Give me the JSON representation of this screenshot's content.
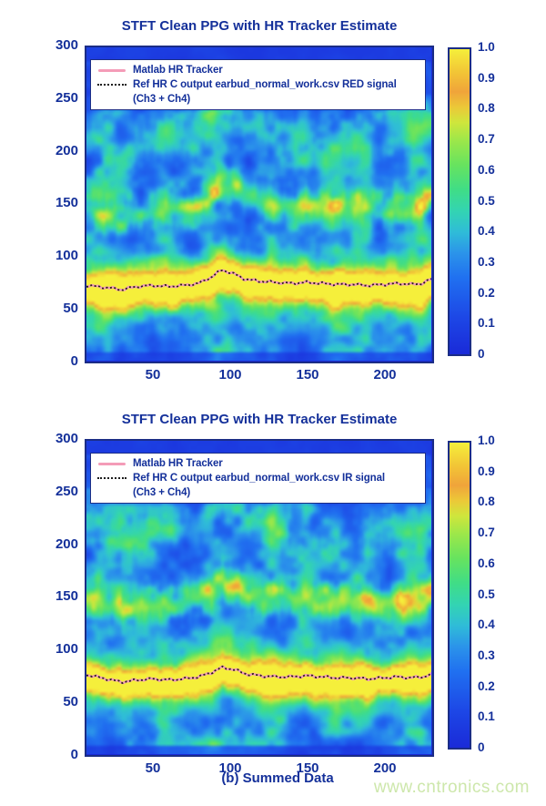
{
  "figure": {
    "caption": "(b) Summed Data",
    "watermark": "www.cntronics.com"
  },
  "colors": {
    "text_navy": "#14309a",
    "axis_border": "#1b2d86",
    "matlab_tracker_pink": "#f49cb8",
    "ref_tracker_dark": "#2b2014",
    "watermark_green": "#cde7ab",
    "background": "#ffffff"
  },
  "colormap_stops": [
    [
      0.0,
      "#1a2ad8"
    ],
    [
      0.12,
      "#1d47e6"
    ],
    [
      0.25,
      "#2070f0"
    ],
    [
      0.33,
      "#2b93ea"
    ],
    [
      0.4,
      "#2fbcd8"
    ],
    [
      0.47,
      "#33d4b2"
    ],
    [
      0.54,
      "#40dd86"
    ],
    [
      0.62,
      "#67e35f"
    ],
    [
      0.7,
      "#9ce74a"
    ],
    [
      0.76,
      "#cfe63c"
    ],
    [
      0.81,
      "#ecc838"
    ],
    [
      0.86,
      "#f0a43a"
    ],
    [
      0.92,
      "#f2c336"
    ],
    [
      1.0,
      "#f5ef3b"
    ]
  ],
  "chart_data": [
    {
      "type": "heatmap",
      "title": "STFT Clean PPG with HR Tracker Estimate",
      "xlabel": "",
      "ylabel": "",
      "xticks": [
        "50",
        "100",
        "150",
        "200"
      ],
      "yticks": [
        "300",
        "250",
        "200",
        "150",
        "100",
        "50",
        "0"
      ],
      "x_range": [
        7,
        231
      ],
      "y_range": [
        0,
        300
      ],
      "grid": false,
      "colorbar": {
        "position": "right",
        "range": [
          0,
          1
        ],
        "ticks": [
          "1.0",
          "0.9",
          "0.8",
          "0.7",
          "0.6",
          "0.5",
          "0.4",
          "0.3",
          "0.2",
          "0.1",
          "0"
        ]
      },
      "legend": {
        "position": "top-left",
        "items": [
          {
            "marker": "pink-solid-line",
            "label": "Matlab HR Tracker"
          },
          {
            "marker": "black-dotted-line",
            "label": "Ref HR C output earbud_normal_work.csv RED signal",
            "label_line2": "(Ch3 + Ch4)"
          }
        ]
      },
      "hr_track": {
        "t": [
          7,
          20,
          30,
          40,
          50,
          60,
          70,
          80,
          88,
          95,
          103,
          110,
          120,
          130,
          140,
          150,
          160,
          170,
          180,
          190,
          200,
          210,
          218,
          225,
          231
        ],
        "bpm": [
          72,
          70,
          68,
          71,
          72,
          71,
          72,
          74,
          80,
          87,
          83,
          78,
          76,
          75,
          74,
          75,
          74,
          73,
          73,
          72,
          73,
          74,
          73,
          74,
          78
        ]
      },
      "spectrogram": {
        "seed": 20231,
        "main_band_strength": 0.82,
        "main_band_width": 11,
        "harmonic_strength": 0.3,
        "third_band_strength": 0.15,
        "streaks": {
          "t": [
            13,
            20,
            33,
            57,
            88,
            96,
            128,
            150,
            170,
            186,
            207,
            222,
            229
          ],
          "s": [
            0.3,
            0.45,
            0.22,
            0.26,
            0.5,
            0.34,
            0.42,
            0.26,
            0.5,
            0.26,
            0.3,
            0.45,
            0.35
          ]
        }
      }
    },
    {
      "type": "heatmap",
      "title": "STFT Clean PPG with HR Tracker Estimate",
      "xlabel": "",
      "ylabel": "",
      "xticks": [
        "50",
        "100",
        "150",
        "200"
      ],
      "yticks": [
        "300",
        "250",
        "200",
        "150",
        "100",
        "50",
        "0"
      ],
      "x_range": [
        7,
        231
      ],
      "y_range": [
        0,
        300
      ],
      "grid": false,
      "colorbar": {
        "position": "right",
        "range": [
          0,
          1
        ],
        "ticks": [
          "1.0",
          "0.9",
          "0.8",
          "0.7",
          "0.6",
          "0.5",
          "0.4",
          "0.3",
          "0.2",
          "0.1",
          "0"
        ]
      },
      "legend": {
        "position": "top-left",
        "items": [
          {
            "marker": "pink-solid-line",
            "label": "Matlab HR Tracker"
          },
          {
            "marker": "black-dotted-line",
            "label": "Ref HR C output earbud_normal_work.csv IR signal",
            "label_line2": "(Ch3 + Ch4)"
          }
        ]
      },
      "hr_track": {
        "t": [
          7,
          20,
          30,
          40,
          50,
          60,
          70,
          80,
          88,
          95,
          103,
          110,
          120,
          130,
          140,
          150,
          160,
          170,
          180,
          190,
          200,
          210,
          218,
          225,
          231
        ],
        "bpm": [
          76,
          72,
          69,
          71,
          72,
          71,
          72,
          74,
          78,
          83,
          81,
          77,
          75,
          74,
          74,
          75,
          74,
          73,
          73,
          72,
          73,
          74,
          73,
          74,
          76
        ]
      },
      "spectrogram": {
        "seed": 77413,
        "main_band_strength": 0.92,
        "main_band_width": 9,
        "harmonic_strength": 0.34,
        "third_band_strength": 0.13,
        "streaks": {
          "t": [
            12,
            30,
            58,
            88,
            100,
            128,
            152,
            170,
            190,
            213,
            225
          ],
          "s": [
            0.35,
            0.25,
            0.3,
            0.45,
            0.3,
            0.35,
            0.3,
            0.35,
            0.3,
            0.35,
            0.4
          ]
        }
      }
    }
  ]
}
